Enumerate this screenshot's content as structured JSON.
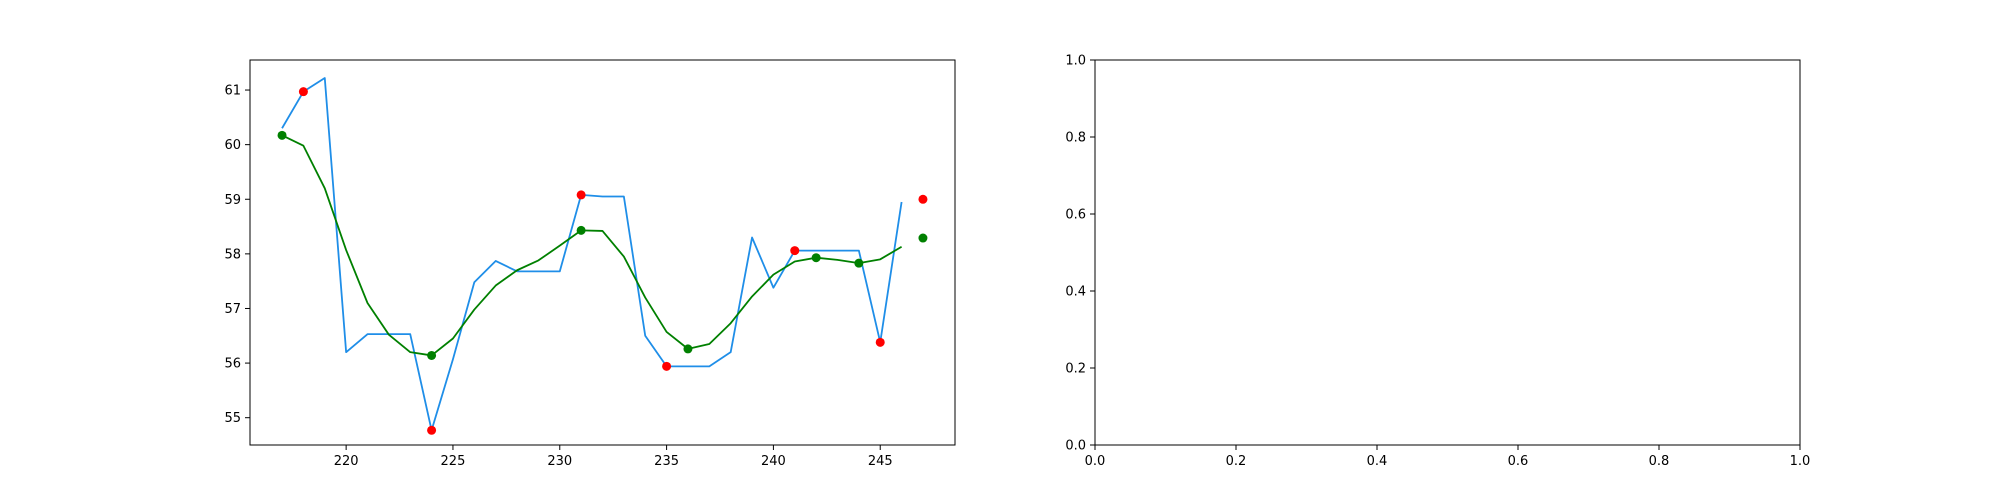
{
  "chart_data": [
    {
      "type": "line",
      "xlim": [
        215.5,
        248.5
      ],
      "ylim": [
        54.5,
        61.55
      ],
      "xticks": [
        220,
        225,
        230,
        235,
        240,
        245
      ],
      "yticks": [
        55,
        56,
        57,
        58,
        59,
        60,
        61
      ],
      "grid": false,
      "colors": {
        "raw": "#1f8ee8",
        "smooth": "#008000",
        "red_points": "#ff0000",
        "green_points": "#008000"
      },
      "series": [
        {
          "style": "line",
          "color": "#1f8ee8",
          "x": [
            217,
            218,
            219,
            220,
            221,
            222,
            223,
            224,
            225,
            226,
            227,
            228,
            229,
            230,
            231,
            232,
            233,
            234,
            235,
            236,
            237,
            238,
            239,
            240,
            241,
            242,
            243,
            244,
            245,
            246
          ],
          "y": [
            60.3,
            60.97,
            61.22,
            56.2,
            56.53,
            56.53,
            56.53,
            54.77,
            56.07,
            57.48,
            57.87,
            57.68,
            57.68,
            57.68,
            59.08,
            59.05,
            59.05,
            56.5,
            55.94,
            55.94,
            55.94,
            56.2,
            58.3,
            57.38,
            58.06,
            58.06,
            58.06,
            58.06,
            56.38,
            58.95
          ]
        },
        {
          "style": "line",
          "color": "#008000",
          "x": [
            217,
            218,
            219,
            220,
            221,
            222,
            223,
            224,
            225,
            226,
            227,
            228,
            229,
            230,
            231,
            232,
            233,
            234,
            235,
            236,
            237,
            238,
            239,
            240,
            241,
            242,
            243,
            244,
            245,
            246
          ],
          "y": [
            60.17,
            59.98,
            59.2,
            58.07,
            57.1,
            56.52,
            56.2,
            56.14,
            56.45,
            56.98,
            57.42,
            57.7,
            57.88,
            58.15,
            58.43,
            58.42,
            57.95,
            57.2,
            56.57,
            56.26,
            56.35,
            56.73,
            57.22,
            57.62,
            57.86,
            57.93,
            57.89,
            57.83,
            57.9,
            58.13
          ]
        },
        {
          "style": "scatter",
          "color": "#ff0000",
          "x": [
            218,
            224,
            231,
            235,
            241,
            245,
            247
          ],
          "y": [
            60.97,
            54.77,
            59.08,
            55.94,
            58.06,
            56.38,
            59.0
          ]
        },
        {
          "style": "scatter",
          "color": "#008000",
          "x": [
            217,
            224,
            231,
            236,
            242,
            244,
            247
          ],
          "y": [
            60.17,
            56.14,
            58.43,
            56.26,
            57.93,
            57.83,
            58.29
          ]
        }
      ]
    },
    {
      "type": "line",
      "xlim": [
        0.0,
        1.0
      ],
      "ylim": [
        0.0,
        1.0
      ],
      "grid": false,
      "series": []
    }
  ],
  "axes": [
    {
      "xtick_labels": [
        "220",
        "225",
        "230",
        "235",
        "240",
        "245"
      ],
      "ytick_labels": [
        "55",
        "56",
        "57",
        "58",
        "59",
        "60",
        "61"
      ]
    },
    {
      "xtick_labels": [
        "0.0",
        "0.2",
        "0.4",
        "0.6",
        "0.8",
        "1.0"
      ],
      "ytick_labels": [
        "0.0",
        "0.2",
        "0.4",
        "0.6",
        "0.8",
        "1.0"
      ]
    }
  ]
}
